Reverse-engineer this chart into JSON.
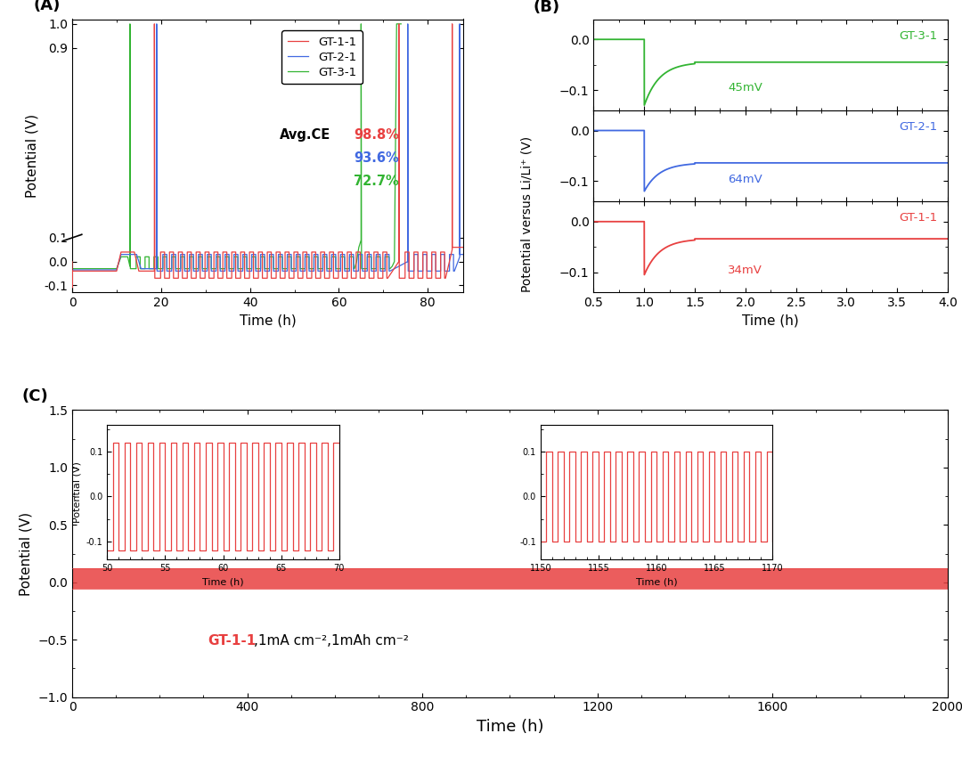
{
  "panel_A": {
    "title": "(A)",
    "xlabel": "Time (h)",
    "ylabel": "Potential (V)",
    "xlim": [
      0,
      88
    ],
    "ylim": [
      -0.13,
      1.02
    ],
    "xticks": [
      0,
      20,
      40,
      60,
      80
    ],
    "yticks": [
      -0.1,
      0.0,
      0.1,
      0.9,
      1.0
    ],
    "yticklabels": [
      "-0.1",
      "0.0",
      "0.1",
      "0.9",
      "1.0"
    ],
    "colors": {
      "GT-1-1": "#e84040",
      "GT-2-1": "#4169e1",
      "GT-3-1": "#32b432"
    },
    "legend_labels": [
      "GT-1-1",
      "GT-2-1",
      "GT-3-1"
    ],
    "avg_ce_text": "Avg.CE",
    "avg_ce_values": [
      "98.8%",
      "93.6%",
      "72.7%"
    ],
    "avg_ce_colors": [
      "#e84040",
      "#4169e1",
      "#32b432"
    ]
  },
  "panel_B": {
    "title": "(B)",
    "xlabel": "Time (h)",
    "ylabel": "Potential versus Li/Li⁺ (V)",
    "xlim": [
      0.5,
      4.0
    ],
    "xticks": [
      0.5,
      1.0,
      1.5,
      2.0,
      2.5,
      3.0,
      3.5,
      4.0
    ],
    "subplots": [
      {
        "label": "GT-3-1",
        "color": "#32b432",
        "plateau": -0.045,
        "nucleation_drop": -0.13,
        "mV_text": "45mV"
      },
      {
        "label": "GT-2-1",
        "color": "#4169e1",
        "plateau": -0.064,
        "nucleation_drop": -0.12,
        "mV_text": "64mV"
      },
      {
        "label": "GT-1-1",
        "color": "#e84040",
        "plateau": -0.034,
        "nucleation_drop": -0.105,
        "mV_text": "34mV"
      }
    ],
    "ylim_each": [
      -0.14,
      0.04
    ]
  },
  "panel_C": {
    "title": "(C)",
    "xlabel": "Time (h)",
    "ylabel": "Potential (V)",
    "xlim": [
      0,
      2000
    ],
    "xticks": [
      0,
      400,
      800,
      1200,
      1600,
      2000
    ],
    "ylim": [
      -1.0,
      1.5
    ],
    "yticks": [
      -1.0,
      -0.5,
      0.0,
      0.5,
      1.0,
      1.5
    ],
    "main_color": "#e84040",
    "band_upper": 0.12,
    "band_lower": -0.055,
    "annotation_label": "GT-1-1",
    "annotation_suffix": ",1mA cm⁻²,1mAh cm⁻²",
    "annotation_color": "#e84040",
    "inset1": {
      "xlim": [
        50,
        70
      ],
      "xticks": [
        50,
        55,
        60,
        65,
        70
      ],
      "ylim": [
        -0.14,
        0.16
      ],
      "yticks": [
        -0.1,
        0.0,
        0.1
      ],
      "ylabel": "Potential (V)",
      "xlabel": "Time (h)",
      "square_high": 0.12,
      "square_low": -0.12,
      "half_period": 0.5
    },
    "inset2": {
      "xlim": [
        1150,
        1170
      ],
      "xticks": [
        1150,
        1155,
        1160,
        1165,
        1170
      ],
      "ylim": [
        -0.14,
        0.16
      ],
      "yticks": [
        -0.1,
        0.0,
        0.1
      ],
      "ylabel": "",
      "xlabel": "Time (h)",
      "square_high": 0.1,
      "square_low": -0.1,
      "half_period": 0.5
    }
  }
}
